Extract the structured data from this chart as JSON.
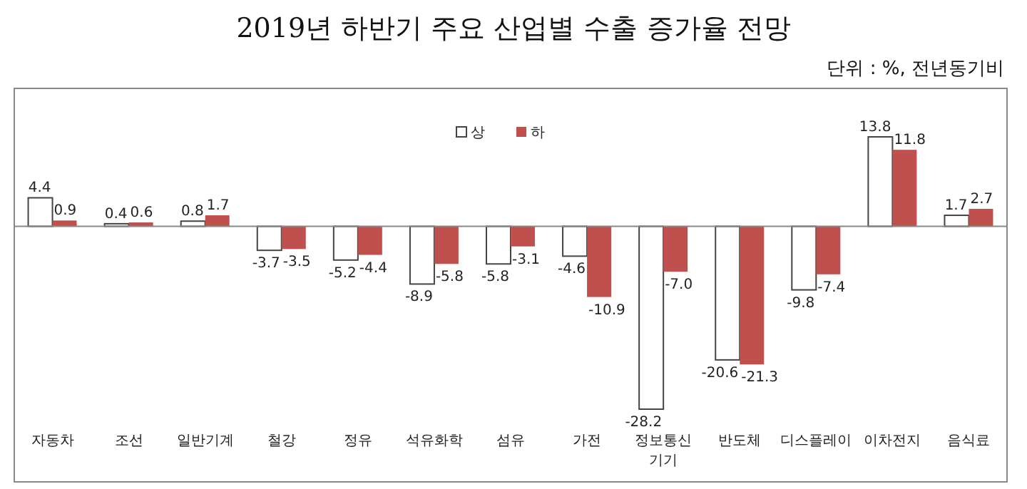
{
  "chart_data": {
    "type": "bar",
    "title": "2019년 하반기 주요 산업별 수출 증가율 전망",
    "subtitle": "단위 : %, 전년동기비",
    "categories": [
      "자동차",
      "조선",
      "일반기계",
      "철강",
      "정유",
      "석유화학",
      "섬유",
      "가전",
      "정보통신기기",
      "반도체",
      "디스플레이",
      "이차전지",
      "음식료"
    ],
    "series": [
      {
        "name": "상",
        "color": "#ffffff",
        "values": [
          4.4,
          0.4,
          0.8,
          -3.7,
          -5.2,
          -8.9,
          -5.8,
          -4.6,
          -28.2,
          -20.6,
          -9.8,
          13.8,
          1.7
        ],
        "value_labels": [
          "4.4",
          "0.4",
          "0.8",
          "-3.7",
          "-5.2",
          "-8.9",
          "-5.8",
          "-4.6",
          "-28.2",
          "-20.6",
          "-9.8",
          "13.8",
          "1.7"
        ]
      },
      {
        "name": "하",
        "color": "#c0504d",
        "values": [
          0.9,
          0.6,
          1.7,
          -3.5,
          -4.4,
          -5.8,
          -3.1,
          -10.9,
          -7.0,
          -21.3,
          -7.4,
          11.8,
          2.7
        ],
        "value_labels": [
          "0.9",
          "0.6",
          "1.7",
          "-3.5",
          "-4.4",
          "-5.8",
          "-3.1",
          "-10.9",
          "-7.0",
          "-21.3",
          "-7.4",
          "11.8",
          "2.7"
        ]
      }
    ],
    "legend": "top",
    "grid": false
  }
}
